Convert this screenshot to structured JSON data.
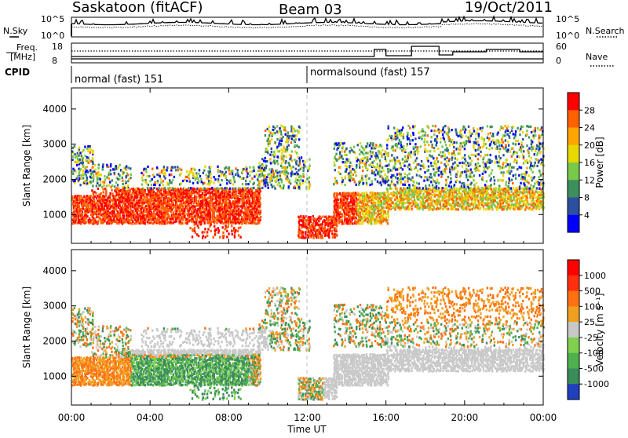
{
  "header": {
    "station": "Saskatoon (fitACF)",
    "beam": "Beam 03",
    "date": "19/Oct/2011"
  },
  "summary_panels": {
    "sky_label": "N.Sky",
    "search_label": "N.Search",
    "sky_ticks": [
      "10^5",
      "10^0"
    ],
    "search_ticks": [
      "10^5",
      "10^0"
    ],
    "freq_label_1": "Freq.",
    "freq_label_2": "[MHz]",
    "freq_ticks": [
      "18",
      "8"
    ],
    "nave_label": "Nave",
    "nave_ticks": [
      "60",
      "0"
    ],
    "cpid_label": "CPID",
    "cpid_segments": [
      {
        "label": "normal (fast) 151",
        "start_hour": 0
      },
      {
        "label": "normalsound (fast) 157",
        "start_hour": 12
      }
    ]
  },
  "chart_data": [
    {
      "type": "heatmap",
      "name": "power",
      "ylabel": "Slant Range [km]",
      "yticks": [
        "4000",
        "3000",
        "2000",
        "1000"
      ],
      "ytick_values": [
        4000,
        3000,
        2000,
        1000
      ],
      "ylim": [
        180,
        4600
      ],
      "colorbar_label": "Power [dB]",
      "colorbar_ticks": [
        "28",
        "24",
        "20",
        "16",
        "12",
        "8",
        "4"
      ],
      "colors": [
        "#0000ff",
        "#2c4fa0",
        "#3d8f5c",
        "#78c84a",
        "#e6d800",
        "#ffa500",
        "#ff6000",
        "#ff0000"
      ]
    },
    {
      "type": "heatmap",
      "name": "velocity",
      "ylabel": "Slant Range [km]",
      "yticks": [
        "4000",
        "3000",
        "2000",
        "1000"
      ],
      "ytick_values": [
        4000,
        3000,
        2000,
        1000
      ],
      "ylim": [
        180,
        4600
      ],
      "colorbar_label": "Velocity [m s⁻¹]",
      "colorbar_ticks": [
        "1000",
        "500",
        "100",
        "25",
        "-25",
        "-100",
        "-500",
        "-1000"
      ],
      "colors": [
        "#2040c0",
        "#3a8c5a",
        "#50b050",
        "#80d050",
        "#c8c8c8",
        "#f0a020",
        "#ff7010",
        "#ff3010",
        "#ff0000"
      ]
    }
  ],
  "x_axis": {
    "label": "Time UT",
    "ticks": [
      "00:00",
      "04:00",
      "08:00",
      "12:00",
      "16:00",
      "20:00",
      "00:00"
    ],
    "tick_hours": [
      0,
      4,
      8,
      12,
      16,
      20,
      24
    ]
  },
  "colors": {
    "gray_fill": "#c8c8c8",
    "dashed_line": "#c0c0c0"
  }
}
